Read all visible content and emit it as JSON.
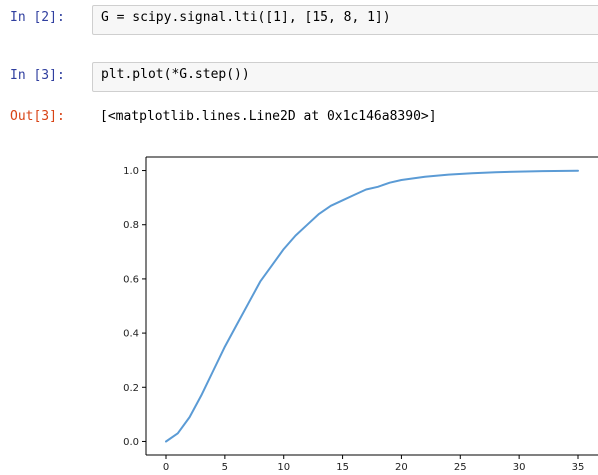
{
  "cells": [
    {
      "prompt": "In [2]:",
      "code": "G = scipy.signal.lti([1], [15, 8, 1])"
    },
    {
      "prompt": "In [3]:",
      "code": "plt.plot(*G.step())"
    }
  ],
  "output": {
    "prompt": "Out[3]:",
    "text": "[<matplotlib.lines.Line2D at 0x1c146a8390>]"
  },
  "colors": {
    "in_prompt": "#303f9f",
    "out_prompt": "#d84315",
    "line": "#5b9bd5"
  },
  "chart_data": {
    "type": "line",
    "title": "",
    "xlabel": "",
    "ylabel": "",
    "xlim": [
      -1.7,
      36.7
    ],
    "ylim": [
      -0.05,
      1.05
    ],
    "xticks": [
      0,
      5,
      10,
      15,
      20,
      25,
      30,
      35
    ],
    "xtick_labels": [
      "0",
      "5",
      "10",
      "15",
      "20",
      "25",
      "30",
      "35"
    ],
    "yticks": [
      0.0,
      0.2,
      0.4,
      0.6,
      0.8,
      1.0
    ],
    "ytick_labels": [
      "0.0",
      "0.2",
      "0.4",
      "0.6",
      "0.8",
      "1.0"
    ],
    "grid": false,
    "series": [
      {
        "x": [
          0,
          1,
          2,
          3,
          4,
          5,
          6,
          7,
          8,
          9,
          10,
          11,
          12,
          13,
          14,
          15,
          16,
          17,
          18,
          19,
          20,
          22,
          24,
          26,
          28,
          30,
          32,
          35
        ],
        "y": [
          0.0,
          0.03,
          0.09,
          0.17,
          0.26,
          0.35,
          0.43,
          0.51,
          0.59,
          0.65,
          0.71,
          0.76,
          0.8,
          0.84,
          0.87,
          0.89,
          0.91,
          0.93,
          0.94,
          0.955,
          0.965,
          0.977,
          0.985,
          0.99,
          0.994,
          0.996,
          0.998,
          0.999
        ]
      }
    ]
  }
}
